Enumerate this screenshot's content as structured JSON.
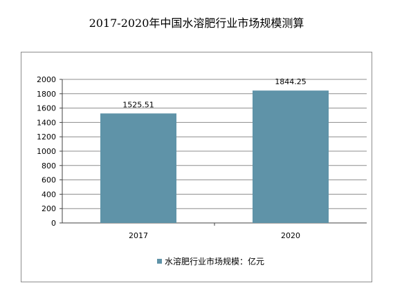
{
  "title": "2017-2020年中国水溶肥行业市场规模测算",
  "colors": {
    "bar": "#5f93a8",
    "grid": "#8c8c8c",
    "axis": "#404040"
  },
  "chart_data": {
    "type": "bar",
    "categories": [
      "2017",
      "2020"
    ],
    "series": [
      {
        "name": "水溶肥行业市场规模：亿元",
        "values": [
          1525.51,
          1844.25
        ]
      }
    ],
    "data_labels": [
      "1525.51",
      "1844.25"
    ],
    "ylim": [
      0,
      2000
    ],
    "yticks": [
      0,
      200,
      400,
      600,
      800,
      1000,
      1200,
      1400,
      1600,
      1800,
      2000
    ],
    "grid": true,
    "legend_position": "bottom"
  }
}
